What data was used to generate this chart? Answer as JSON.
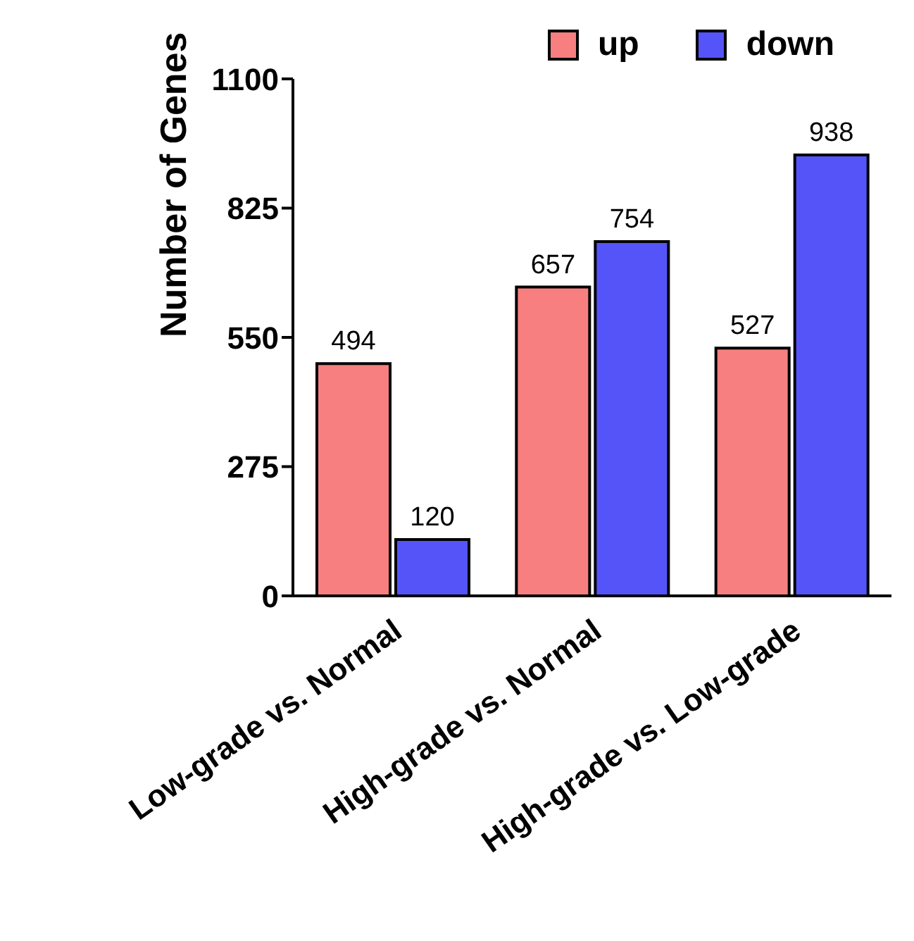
{
  "chart_data": {
    "type": "bar",
    "ylabel": "Number of Genes",
    "categories": [
      "Low-grade vs. Normal",
      "High-grade vs. Normal",
      "High-grade vs. Low-grade"
    ],
    "series": [
      {
        "name": "up",
        "color": "#f87f7f",
        "values": [
          494,
          657,
          527
        ]
      },
      {
        "name": "down",
        "color": "#5454f8",
        "values": [
          120,
          754,
          938
        ]
      }
    ],
    "ylim": [
      0,
      1100
    ],
    "yticks": [
      0,
      275,
      550,
      825,
      1100
    ],
    "data_labels": true,
    "legend": "top",
    "grid": false
  }
}
